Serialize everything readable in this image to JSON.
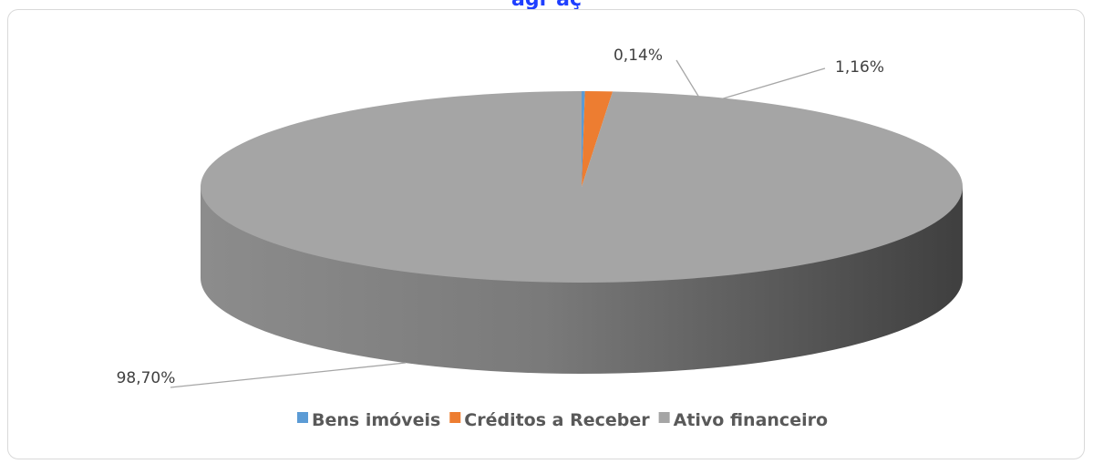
{
  "top_title_partial": "agr aç",
  "chart_data": {
    "type": "pie",
    "style": "3d",
    "slices": [
      {
        "label": "Bens imóveis",
        "value": 0.14,
        "value_label": "0,14%",
        "color": "#5b9bd5"
      },
      {
        "label": "Créditos a Receber",
        "value": 1.16,
        "value_label": "1,16%",
        "color": "#ed7d31"
      },
      {
        "label": "Ativo financeiro",
        "value": 98.7,
        "value_label": "98,70%",
        "color": "#a5a5a5"
      }
    ],
    "legend_position": "bottom"
  }
}
